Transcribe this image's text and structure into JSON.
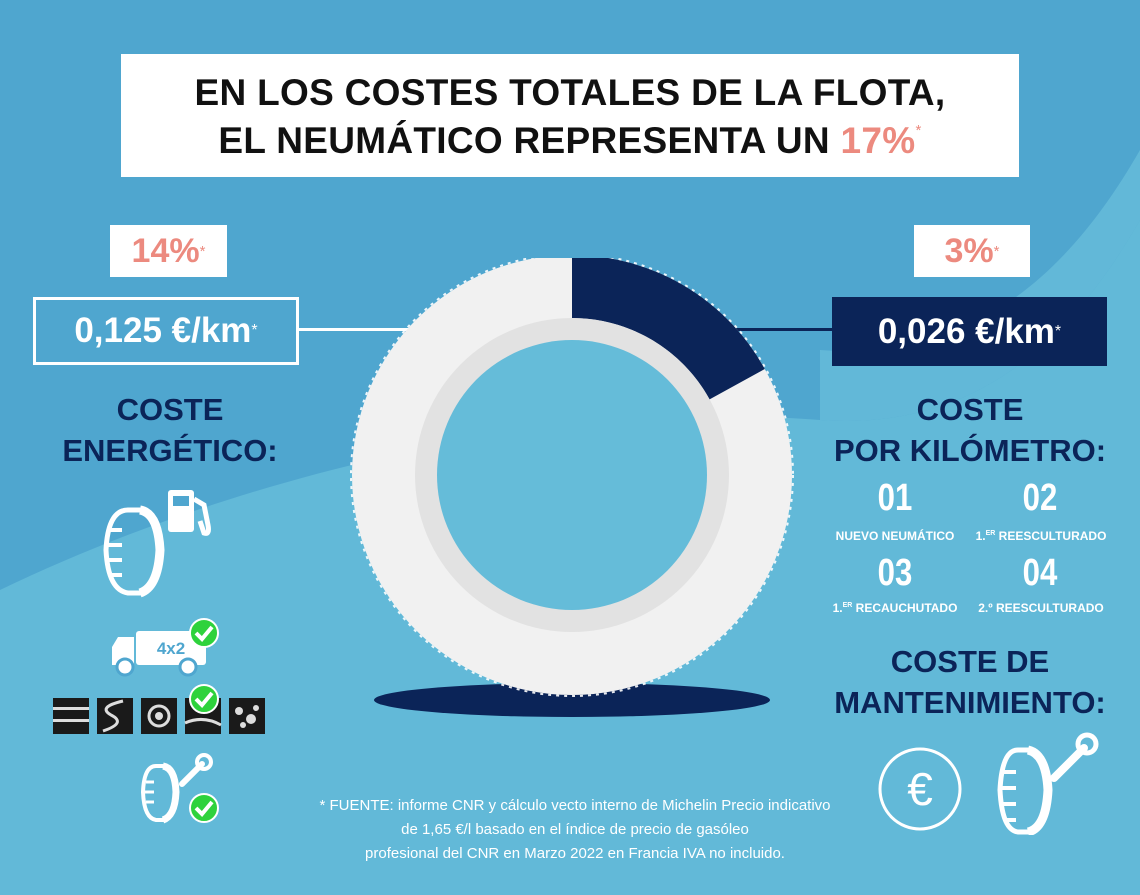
{
  "colors": {
    "background": "#4fa6cf",
    "light_band": "#6fc4dd",
    "navy": "#0b2458",
    "accent": "#ec8a7f",
    "white": "#ffffff"
  },
  "title": {
    "line1": "EN LOS COSTES TOTALES DE LA FLOTA,",
    "line2_prefix": "EL NEUMÁTICO REPRESENTA UN ",
    "line2_value": "17%",
    "footnote_mark": "*"
  },
  "left": {
    "percent": "14%",
    "percent_mark": "*",
    "price": "0,125 €/km",
    "price_mark": "*",
    "heading_line1": "COSTE",
    "heading_line2": "ENERGÉTICO:",
    "icons": [
      "tire-fuel-pump-icon",
      "truck-4x2-icon",
      "check-icon",
      "road-type-icons",
      "check-icon",
      "tire-wrench-icon",
      "check-icon"
    ],
    "truck_label": "4x2"
  },
  "right": {
    "percent": "3%",
    "percent_mark": "*",
    "price": "0,026 €/km",
    "price_mark": "*",
    "heading_line1": "COSTE",
    "heading_line2": "POR KILÓMETRO:",
    "items": [
      {
        "number": "01",
        "label": "NUEVO NEUMÁTICO",
        "label_sup": ""
      },
      {
        "number": "02",
        "label_prefix": "1.",
        "label_sup": "ER",
        "label": " REESCULTURADO"
      },
      {
        "number": "03",
        "label_prefix": "1.",
        "label_sup": "ER",
        "label": " RECAUCHUTADO"
      },
      {
        "number": "04",
        "label_prefix": "2.º",
        "label_sup": "",
        "label": " REESCULTURADO"
      }
    ],
    "maintenance_line1": "COSTE DE",
    "maintenance_line2": "MANTENIMIENTO:",
    "maintenance_icons": [
      "euro-icon",
      "tire-wrench-icon"
    ]
  },
  "donut": {
    "highlight_fraction": 0.17
  },
  "footnote": {
    "line1": "* FUENTE: informe CNR y cálculo vecto interno de Michelin Precio indicativo",
    "line2": "de 1,65 €/l basado en el índice de precio de gasóleo",
    "line3": "profesional del CNR en Marzo 2022 en Francia IVA no incluido."
  }
}
